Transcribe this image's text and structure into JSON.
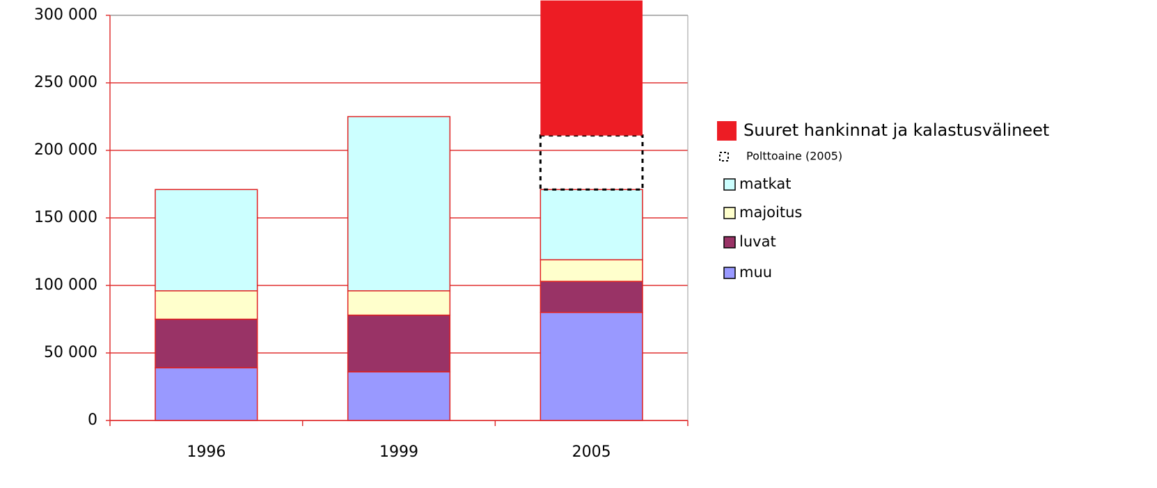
{
  "chart_data": {
    "type": "stacked_bar",
    "categories": [
      "1996",
      "1999",
      "2005"
    ],
    "series": [
      {
        "name": "muu",
        "color": "#9999ff",
        "values": [
          39000,
          36000,
          80000
        ]
      },
      {
        "name": "luvat",
        "color": "#993366",
        "values": [
          36000,
          42000,
          23000
        ]
      },
      {
        "name": "majoitus",
        "color": "#ffffcc",
        "values": [
          21000,
          18000,
          16000
        ]
      },
      {
        "name": "matkat",
        "color": "#ccffff",
        "values": [
          75000,
          129000,
          52000
        ]
      },
      {
        "name": "Polttoaine (2005)",
        "color": "#000000",
        "outline": "dashed",
        "values": [
          null,
          null,
          40000
        ]
      },
      {
        "name": "Suuret hankinnat ja kalastusvälineet",
        "color": "#ed1c24",
        "values": [
          null,
          null,
          100000
        ]
      }
    ],
    "ylim": [
      0,
      300000
    ],
    "yticks": [
      0,
      {
        "value": 50000,
        "label": "50 000"
      },
      {
        "value": 100000,
        "label": "100 000"
      },
      {
        "value": 150000,
        "label": "150 000"
      },
      {
        "value": 200000,
        "label": "200 000"
      },
      {
        "value": 250000,
        "label": "250 000"
      },
      {
        "value": 300000,
        "label": "300 000"
      }
    ],
    "grid": true,
    "legend": "right"
  }
}
